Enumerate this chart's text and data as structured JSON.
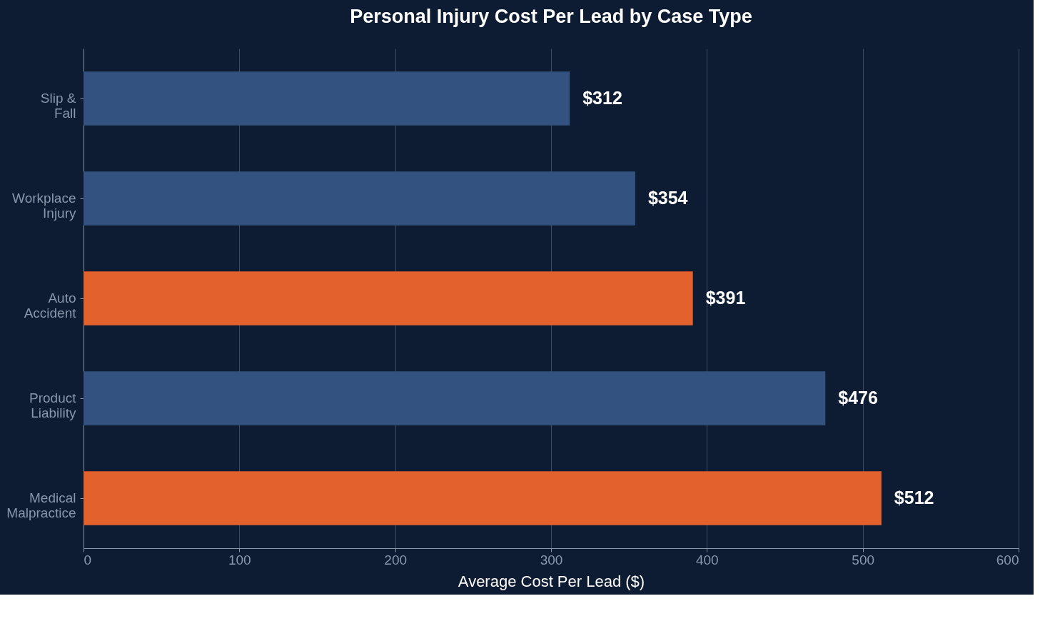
{
  "chart_data": {
    "type": "bar",
    "orientation": "horizontal",
    "title": "Personal Injury Cost Per Lead by Case Type",
    "xlabel": "Average Cost Per Lead ($)",
    "categories": [
      "Slip & Fall",
      "Workplace Injury",
      "Auto Accident",
      "Product Liability",
      "Medical Malpractice"
    ],
    "values": [
      312,
      354,
      391,
      476,
      512
    ],
    "colors": [
      "#34527f",
      "#34527f",
      "#e2612c",
      "#34527f",
      "#e2612c"
    ],
    "value_labels": [
      "$312",
      "$354",
      "$391",
      "$476",
      "$512"
    ],
    "xlim": [
      0,
      600
    ],
    "xticks": [
      0,
      100,
      200,
      300,
      400,
      500,
      600
    ],
    "grid": "x"
  }
}
